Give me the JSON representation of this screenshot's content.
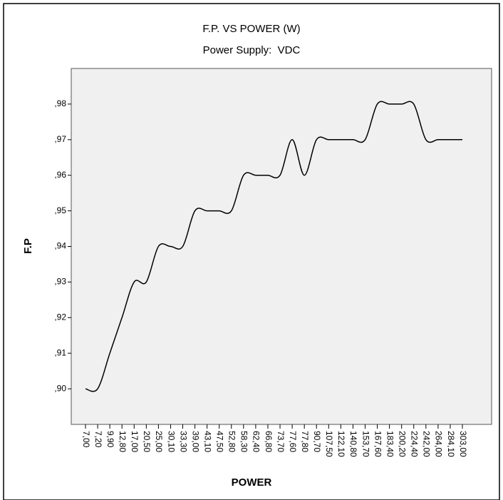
{
  "chart_data": {
    "type": "line",
    "title": "F.P. VS POWER (W)",
    "subtitle": "Power Supply:  VDC",
    "x_label": "POWER",
    "y_label": "F.P",
    "categories": [
      "7,00",
      "7,20",
      "9,90",
      "12,80",
      "17,00",
      "20,50",
      "25,00",
      "30,10",
      "33,30",
      "39,00",
      "43,10",
      "47,50",
      "52,80",
      "58,30",
      "62,40",
      "66,80",
      "73,70",
      "77,60",
      "77,80",
      "90,70",
      "107,50",
      "122,10",
      "140,80",
      "153,70",
      "167,60",
      "183,40",
      "200,20",
      "224,40",
      "242,00",
      "264,00",
      "284,10",
      "303,00"
    ],
    "series": [
      {
        "name": "F.P",
        "color": "#000000",
        "values": [
          0.9,
          0.9,
          0.91,
          0.92,
          0.93,
          0.93,
          0.94,
          0.94,
          0.94,
          0.95,
          0.95,
          0.95,
          0.95,
          0.96,
          0.96,
          0.96,
          0.96,
          0.97,
          0.96,
          0.97,
          0.97,
          0.97,
          0.97,
          0.97,
          0.98,
          0.98,
          0.98,
          0.98,
          0.97,
          0.97,
          0.97,
          0.97
        ]
      }
    ],
    "ylim": [
      0.89,
      0.99
    ],
    "yticks": [
      {
        "value": 0.9,
        "label": ",90"
      },
      {
        "value": 0.91,
        "label": ",91"
      },
      {
        "value": 0.92,
        "label": ",92"
      },
      {
        "value": 0.93,
        "label": ",93"
      },
      {
        "value": 0.94,
        "label": ",94"
      },
      {
        "value": 0.95,
        "label": ",95"
      },
      {
        "value": 0.96,
        "label": ",96"
      },
      {
        "value": 0.97,
        "label": ",97"
      },
      {
        "value": 0.98,
        "label": ",98"
      }
    ],
    "grid": false
  }
}
